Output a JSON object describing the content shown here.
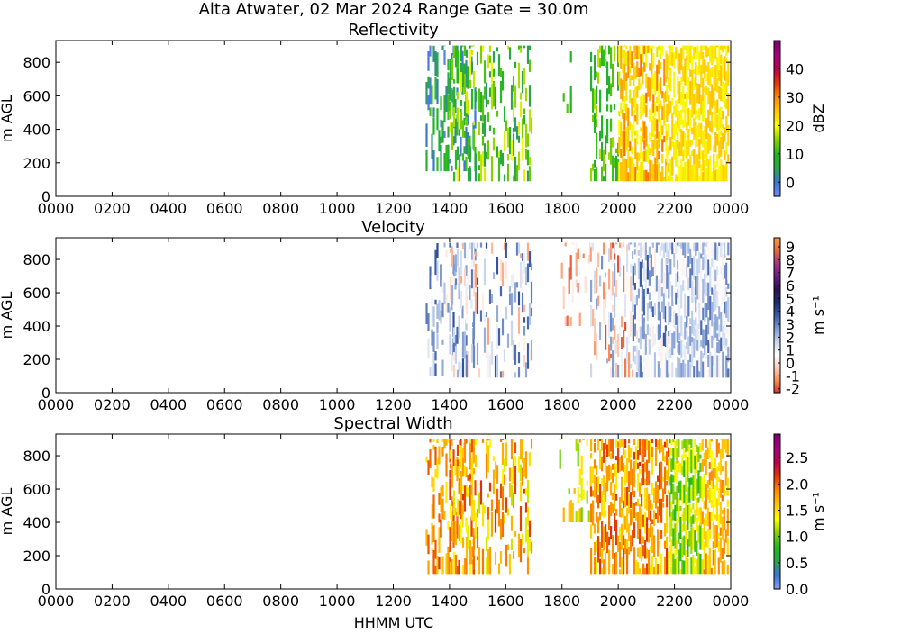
{
  "figure": {
    "title": "Alta Atwater, 02 Mar 2024 Range Gate = 30.0m",
    "xlabel": "HHMM UTC"
  },
  "chart_data": [
    {
      "type": "heatmap",
      "title": "Reflectivity",
      "ylabel": "m AGL",
      "colorbar_label": "dBZ",
      "colorbar_label_rotated": true,
      "colorbar_ticks": [
        "0",
        "10",
        "20",
        "30",
        "40"
      ],
      "colorbar_tick_values": [
        0,
        10,
        20,
        30,
        40
      ],
      "colorbar_range": [
        -5,
        50
      ],
      "colormap": [
        "#7b8ff0",
        "#3a74d8",
        "#2ea44a",
        "#1fb91f",
        "#86d000",
        "#ffff00",
        "#ffc800",
        "#ff8c00",
        "#e63a00",
        "#c00050",
        "#a8007c",
        "#7a0070"
      ],
      "x_tick_labels": [
        "0000",
        "0200",
        "0400",
        "0600",
        "0800",
        "1000",
        "1200",
        "1400",
        "1600",
        "1800",
        "2000",
        "2200",
        "0000"
      ],
      "x_tick_values": [
        0,
        2,
        4,
        6,
        8,
        10,
        12,
        14,
        16,
        18,
        20,
        22,
        24
      ],
      "xlim": [
        0,
        24
      ],
      "y_tick_labels": [
        "0",
        "200",
        "400",
        "600",
        "800"
      ],
      "y_tick_values": [
        0,
        200,
        400,
        600,
        800
      ],
      "ylim": [
        0,
        930
      ],
      "grid": false,
      "data_segments": [
        {
          "x_start": 13.15,
          "x_end": 14.9,
          "y_min": 150,
          "y_max": 900,
          "value_min": -3,
          "value_max": 12,
          "density": 0.45
        },
        {
          "x_start": 14.0,
          "x_end": 16.9,
          "y_min": 90,
          "y_max": 900,
          "value_min": 3,
          "value_max": 20,
          "density": 0.4
        },
        {
          "x_start": 17.9,
          "x_end": 18.4,
          "y_min": 500,
          "y_max": 900,
          "value_min": 8,
          "value_max": 14,
          "density": 0.25
        },
        {
          "x_start": 19.0,
          "x_end": 20.0,
          "y_min": 90,
          "y_max": 900,
          "value_min": 5,
          "value_max": 18,
          "density": 0.45
        },
        {
          "x_start": 20.0,
          "x_end": 21.7,
          "y_min": 90,
          "y_max": 900,
          "value_min": 18,
          "value_max": 32,
          "density": 0.85
        },
        {
          "x_start": 21.7,
          "x_end": 23.9,
          "y_min": 90,
          "y_max": 900,
          "value_min": 19,
          "value_max": 26,
          "density": 0.95
        }
      ]
    },
    {
      "type": "heatmap",
      "title": "Velocity",
      "ylabel": "m AGL",
      "colorbar_label": "m s⁻¹",
      "colorbar_label_rotated": true,
      "colorbar_ticks": [
        "-2",
        "-1",
        "0",
        "1",
        "2",
        "3",
        "4",
        "5",
        "6",
        "7",
        "8",
        "9"
      ],
      "colorbar_tick_values": [
        -2,
        -1,
        0,
        1,
        2,
        3,
        4,
        5,
        6,
        7,
        8,
        9
      ],
      "colorbar_range": [
        -2.3,
        9.7
      ],
      "colormap": [
        "#d7301f",
        "#fc8d59",
        "#fdd0c0",
        "#ffffff",
        "#c6d4ee",
        "#7f9bd1",
        "#3a5ba8",
        "#1a2e6e",
        "#2a1450",
        "#6a1a80",
        "#a0308a",
        "#e36a3a",
        "#f39a4a"
      ],
      "x_tick_labels": [
        "0000",
        "0200",
        "0400",
        "0600",
        "0800",
        "1000",
        "1200",
        "1400",
        "1600",
        "1800",
        "2000",
        "2200",
        "0000"
      ],
      "x_tick_values": [
        0,
        2,
        4,
        6,
        8,
        10,
        12,
        14,
        16,
        18,
        20,
        22,
        24
      ],
      "xlim": [
        0,
        24
      ],
      "y_tick_labels": [
        "0",
        "200",
        "400",
        "600",
        "800"
      ],
      "y_tick_values": [
        0,
        200,
        400,
        600,
        800
      ],
      "ylim": [
        0,
        930
      ],
      "grid": false,
      "data_segments": [
        {
          "x_start": 13.15,
          "x_end": 14.9,
          "y_min": 100,
          "y_max": 900,
          "value_min": 0,
          "value_max": 4,
          "density": 0.45
        },
        {
          "x_start": 14.0,
          "x_end": 16.9,
          "y_min": 90,
          "y_max": 900,
          "value_min": -1,
          "value_max": 4,
          "density": 0.4
        },
        {
          "x_start": 17.9,
          "x_end": 19.0,
          "y_min": 400,
          "y_max": 900,
          "value_min": -2,
          "value_max": 1,
          "density": 0.25
        },
        {
          "x_start": 19.0,
          "x_end": 20.5,
          "y_min": 90,
          "y_max": 900,
          "value_min": -2,
          "value_max": 3,
          "density": 0.5
        },
        {
          "x_start": 20.5,
          "x_end": 21.7,
          "y_min": 90,
          "y_max": 900,
          "value_min": 0,
          "value_max": 4,
          "density": 0.8
        },
        {
          "x_start": 21.7,
          "x_end": 23.9,
          "y_min": 90,
          "y_max": 900,
          "value_min": 0.3,
          "value_max": 3.5,
          "density": 0.95
        }
      ]
    },
    {
      "type": "heatmap",
      "title": "Spectral Width",
      "ylabel": "m AGL",
      "colorbar_label": "m s⁻¹",
      "colorbar_label_rotated": true,
      "colorbar_ticks": [
        "0.0",
        "0.5",
        "1.0",
        "1.5",
        "2.0",
        "2.5"
      ],
      "colorbar_tick_values": [
        0.0,
        0.5,
        1.0,
        1.5,
        2.0,
        2.5
      ],
      "colorbar_range": [
        0.0,
        2.95
      ],
      "colormap": [
        "#8aa0f0",
        "#3a74d8",
        "#2ea44a",
        "#1fb91f",
        "#86d000",
        "#ffff00",
        "#ffc800",
        "#ff8c00",
        "#e63a00",
        "#c00050",
        "#a8007c",
        "#7a0070"
      ],
      "x_tick_labels": [
        "0000",
        "0200",
        "0400",
        "0600",
        "0800",
        "1000",
        "1200",
        "1400",
        "1600",
        "1800",
        "2000",
        "2200",
        "0000"
      ],
      "x_tick_values": [
        0,
        2,
        4,
        6,
        8,
        10,
        12,
        14,
        16,
        18,
        20,
        22,
        24
      ],
      "xlim": [
        0,
        24
      ],
      "y_tick_labels": [
        "0",
        "200",
        "400",
        "600",
        "800"
      ],
      "y_tick_values": [
        0,
        200,
        400,
        600,
        800
      ],
      "ylim": [
        0,
        930
      ],
      "grid": false,
      "data_segments": [
        {
          "x_start": 13.15,
          "x_end": 14.9,
          "y_min": 90,
          "y_max": 900,
          "value_min": 1.4,
          "value_max": 2.2,
          "density": 0.5
        },
        {
          "x_start": 14.0,
          "x_end": 16.9,
          "y_min": 90,
          "y_max": 900,
          "value_min": 1.2,
          "value_max": 2.2,
          "density": 0.45
        },
        {
          "x_start": 17.9,
          "x_end": 19.0,
          "y_min": 400,
          "y_max": 900,
          "value_min": 1.0,
          "value_max": 1.8,
          "density": 0.25
        },
        {
          "x_start": 19.0,
          "x_end": 21.8,
          "y_min": 90,
          "y_max": 900,
          "value_min": 1.4,
          "value_max": 2.2,
          "density": 0.8
        },
        {
          "x_start": 21.8,
          "x_end": 22.9,
          "y_min": 90,
          "y_max": 900,
          "value_min": 0.8,
          "value_max": 1.5,
          "density": 0.95
        },
        {
          "x_start": 22.9,
          "x_end": 23.9,
          "y_min": 90,
          "y_max": 900,
          "value_min": 1.3,
          "value_max": 2.0,
          "density": 0.9
        }
      ]
    }
  ]
}
